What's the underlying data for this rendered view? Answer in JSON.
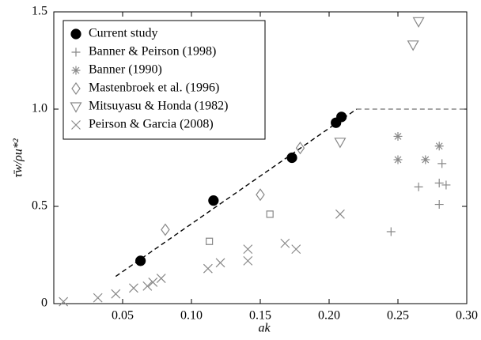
{
  "chart_data": {
    "type": "scatter",
    "x_label": "ak",
    "y_label": "τ̄w/ρu*²",
    "xlim": [
      0,
      0.3
    ],
    "ylim": [
      0,
      1.5
    ],
    "xticks": [
      0.05,
      {
        "value": 0.1,
        "label": "0.10"
      },
      0.15,
      {
        "value": 0.2,
        "label": "0.20"
      },
      0.25,
      {
        "value": 0.3,
        "label": "0.30"
      }
    ],
    "yticks": [
      0,
      0.5,
      {
        "value": 1,
        "label": "1.0"
      },
      1.5
    ],
    "legend": "upper left",
    "series": [
      {
        "name": "Current study",
        "marker": "circle",
        "color": "#000000",
        "x": [
          0.063,
          0.116,
          0.173,
          0.205,
          0.209
        ],
        "values": [
          0.22,
          0.53,
          0.75,
          0.93,
          0.96
        ]
      },
      {
        "name": "Banner & Peirson (1998)",
        "marker": "plus",
        "color": "#888888",
        "x": [
          0.245,
          0.265,
          0.28,
          0.28,
          0.282,
          0.285
        ],
        "values": [
          0.37,
          0.6,
          0.62,
          0.51,
          0.72,
          0.61
        ]
      },
      {
        "name": "Banner (1990)",
        "marker": "star",
        "color": "#888888",
        "x": [
          0.25,
          0.25,
          0.27,
          0.28
        ],
        "values": [
          0.86,
          0.74,
          0.74,
          0.81
        ]
      },
      {
        "name": "Mastenbroek et al. (1996)",
        "marker": "diamond",
        "color": "#888888",
        "x": [
          0.081,
          0.15,
          0.179
        ],
        "values": [
          0.38,
          0.56,
          0.8
        ]
      },
      {
        "name": "Mitsuyasu & Honda (1982)",
        "marker": "triangle-down",
        "color": "#888888",
        "x": [
          0.208,
          0.261,
          0.265
        ],
        "values": [
          0.83,
          1.33,
          1.45
        ]
      },
      {
        "name": "Peirson & Garcia (2008)",
        "marker": "cross",
        "color": "#888888",
        "x": [
          0.007,
          0.032,
          0.045,
          0.058,
          0.068,
          0.072,
          0.078,
          0.112,
          0.121,
          0.141,
          0.141,
          0.168,
          0.176,
          0.208
        ],
        "values": [
          0.01,
          0.03,
          0.05,
          0.08,
          0.09,
          0.11,
          0.13,
          0.18,
          0.21,
          0.22,
          0.28,
          0.31,
          0.28,
          0.46
        ]
      },
      {
        "marker": "square",
        "color": "#888888",
        "x": [
          0.113,
          0.157
        ],
        "values": [
          0.32,
          0.46
        ]
      }
    ],
    "lines": [
      {
        "color": "#000000",
        "x": [
          0.045,
          0.22
        ],
        "values": [
          0.14,
          1
        ]
      },
      {
        "color": "#888888",
        "x": [
          0.22,
          0.3
        ],
        "values": [
          1,
          1
        ]
      }
    ]
  }
}
